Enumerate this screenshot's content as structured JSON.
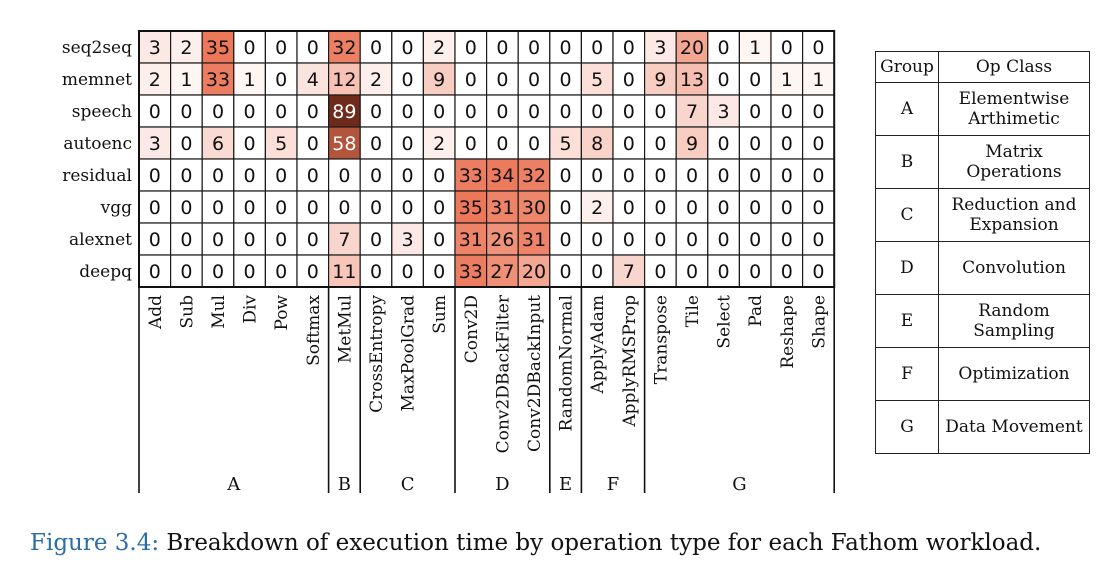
{
  "chart_data": {
    "type": "heatmap",
    "rows": [
      "seq2seq",
      "memnet",
      "speech",
      "autoenc",
      "residual",
      "vgg",
      "alexnet",
      "deepq"
    ],
    "columns": [
      "Add",
      "Sub",
      "Mul",
      "Div",
      "Pow",
      "Softmax",
      "MetMul",
      "CrossEntropy",
      "MaxPoolGrad",
      "Sum",
      "Conv2D",
      "Conv2DBackFilter",
      "Conv2DBackInput",
      "RandomNormal",
      "ApplyAdam",
      "ApplyRMSProp",
      "Transpose",
      "Tile",
      "Select",
      "Pad",
      "Reshape",
      "Shape"
    ],
    "values": [
      [
        3,
        2,
        35,
        0,
        0,
        0,
        32,
        0,
        0,
        2,
        0,
        0,
        0,
        0,
        0,
        0,
        3,
        20,
        0,
        1,
        0,
        0
      ],
      [
        2,
        1,
        33,
        1,
        0,
        4,
        12,
        2,
        0,
        9,
        0,
        0,
        0,
        0,
        5,
        0,
        9,
        13,
        0,
        0,
        1,
        1
      ],
      [
        0,
        0,
        0,
        0,
        0,
        0,
        89,
        0,
        0,
        0,
        0,
        0,
        0,
        0,
        0,
        0,
        0,
        7,
        3,
        0,
        0,
        0
      ],
      [
        3,
        0,
        6,
        0,
        5,
        0,
        58,
        0,
        0,
        2,
        0,
        0,
        0,
        5,
        8,
        0,
        0,
        9,
        0,
        0,
        0,
        0
      ],
      [
        0,
        0,
        0,
        0,
        0,
        0,
        0,
        0,
        0,
        0,
        33,
        34,
        32,
        0,
        0,
        0,
        0,
        0,
        0,
        0,
        0,
        0
      ],
      [
        0,
        0,
        0,
        0,
        0,
        0,
        0,
        0,
        0,
        0,
        35,
        31,
        30,
        0,
        2,
        0,
        0,
        0,
        0,
        0,
        0,
        0
      ],
      [
        0,
        0,
        0,
        0,
        0,
        0,
        7,
        0,
        3,
        0,
        31,
        26,
        31,
        0,
        0,
        0,
        0,
        0,
        0,
        0,
        0,
        0
      ],
      [
        0,
        0,
        0,
        0,
        0,
        0,
        11,
        0,
        0,
        0,
        33,
        27,
        20,
        0,
        0,
        7,
        0,
        0,
        0,
        0,
        0,
        0
      ]
    ],
    "groups": [
      {
        "label": "A",
        "start": 0,
        "end": 5
      },
      {
        "label": "B",
        "start": 6,
        "end": 6
      },
      {
        "label": "C",
        "start": 7,
        "end": 9
      },
      {
        "label": "D",
        "start": 10,
        "end": 12
      },
      {
        "label": "E",
        "start": 13,
        "end": 13
      },
      {
        "label": "F",
        "start": 14,
        "end": 15
      },
      {
        "label": "G",
        "start": 16,
        "end": 21
      }
    ],
    "color_scale": {
      "low": "#ffffff",
      "high": "#6e2a1a"
    }
  },
  "legend": {
    "header_group": "Group",
    "header_class": "Op Class",
    "rows": [
      {
        "group": "A",
        "class": [
          "Elementwise",
          "Arthimetic"
        ]
      },
      {
        "group": "B",
        "class": [
          "Matrix",
          "Operations"
        ]
      },
      {
        "group": "C",
        "class": [
          "Reduction and",
          "Expansion"
        ]
      },
      {
        "group": "D",
        "class": [
          "Convolution"
        ]
      },
      {
        "group": "E",
        "class": [
          "Random",
          "Sampling"
        ]
      },
      {
        "group": "F",
        "class": [
          "Optimization"
        ]
      },
      {
        "group": "G",
        "class": [
          "Data Movement"
        ]
      }
    ]
  },
  "caption": {
    "number": "Figure 3.4:",
    "text": "Breakdown of execution time by operation type for each Fathom workload."
  }
}
